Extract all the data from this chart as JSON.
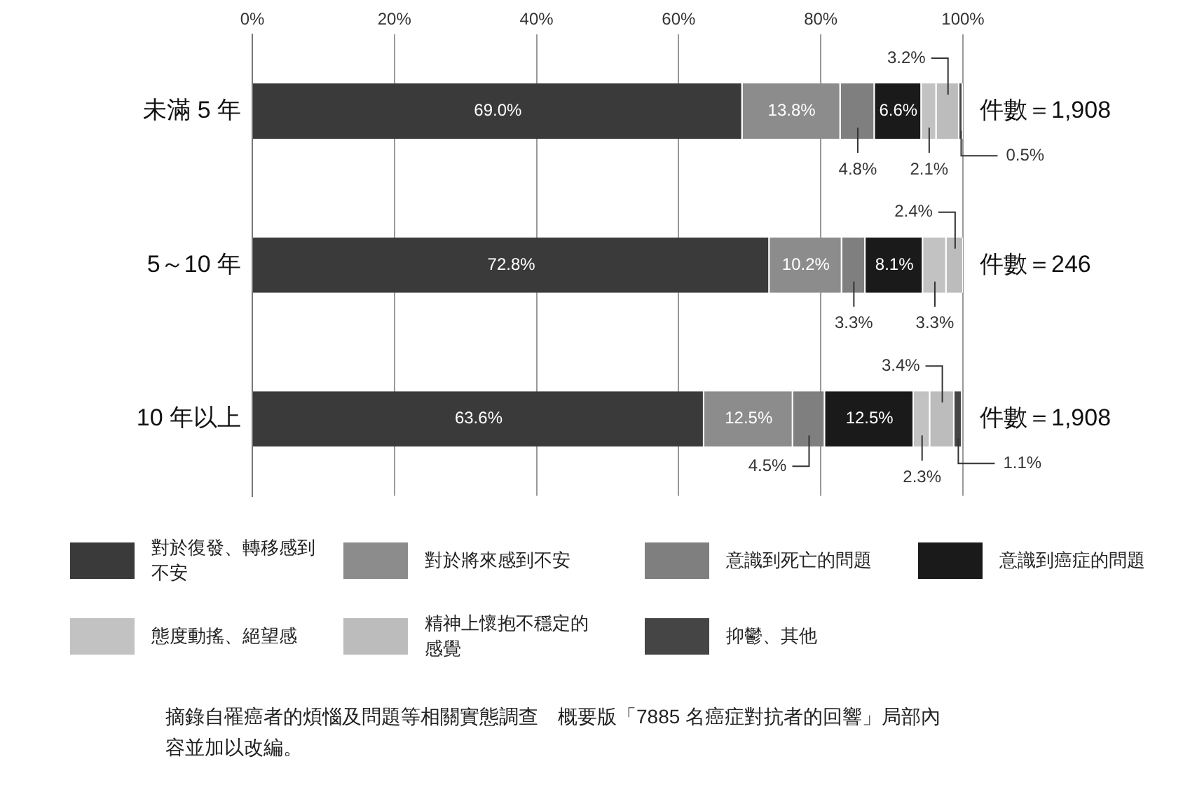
{
  "chart_data": {
    "type": "bar",
    "orientation": "horizontal",
    "stacked": true,
    "categories": [
      "未滿 5 年",
      "5～10 年",
      "10 年以上"
    ],
    "series": [
      {
        "name": "對於復發、轉移感到不安",
        "color": "#3a3a3a",
        "values": [
          69.0,
          72.8,
          63.6
        ],
        "value_labels": [
          "69.0%",
          "72.8%",
          "63.6%"
        ]
      },
      {
        "name": "對於將來感到不安",
        "color": "#8c8c8c",
        "values": [
          13.8,
          10.2,
          12.5
        ],
        "value_labels": [
          "13.8%",
          "10.2%",
          "12.5%"
        ]
      },
      {
        "name": "意識到死亡的問題",
        "color": "#7f7f7f",
        "values": [
          4.8,
          3.3,
          4.5
        ],
        "value_labels": [
          "4.8%",
          "3.3%",
          "4.5%"
        ]
      },
      {
        "name": "意識到癌症的問題",
        "color": "#1a1a1a",
        "values": [
          6.6,
          8.1,
          12.5
        ],
        "value_labels": [
          "6.6%",
          "8.1%",
          "12.5%"
        ]
      },
      {
        "name": "態度動搖、絕望感",
        "color": "#c2c2c2",
        "values": [
          2.1,
          3.3,
          2.3
        ],
        "value_labels": [
          "2.1%",
          "3.3%",
          "2.3%"
        ]
      },
      {
        "name": "精神上懷抱不穩定的感覺",
        "color": "#bcbcbc",
        "values": [
          3.2,
          2.4,
          3.4
        ],
        "value_labels": [
          "3.2%",
          "2.4%",
          "3.4%"
        ]
      },
      {
        "name": "抑鬱、其他",
        "color": "#454545",
        "values": [
          0.5,
          null,
          1.1
        ],
        "value_labels": [
          "0.5%",
          null,
          "1.1%"
        ]
      }
    ],
    "xlim": [
      0,
      100
    ],
    "xticks": [
      {
        "value": 0,
        "label": "0%"
      },
      {
        "value": 20,
        "label": "20%"
      },
      {
        "value": 40,
        "label": "40%"
      },
      {
        "value": 60,
        "label": "60%"
      },
      {
        "value": 80,
        "label": "80%"
      },
      {
        "value": 100,
        "label": "100%"
      }
    ],
    "grid": "x",
    "legend": "bottom",
    "annotations": [
      "件數＝1,908",
      "件數＝246",
      "件數＝1,908",
      "摘錄自罹癌者的煩惱及問題等相關實態調查　概要版「7885 名癌症對抗者的回響」局部內容並加以改編。"
    ]
  }
}
